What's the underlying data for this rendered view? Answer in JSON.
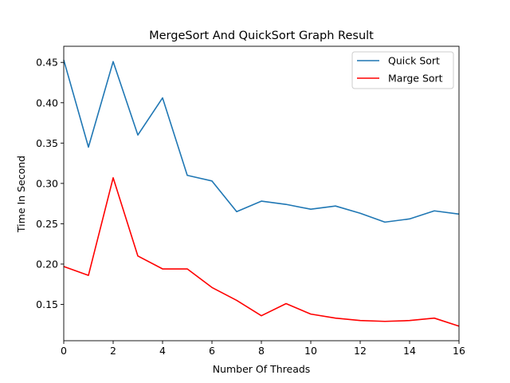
{
  "chart_data": {
    "type": "line",
    "title": "MergeSort And QuickSort Graph Result",
    "xlabel": "Number Of Threads",
    "ylabel": "Time In Second",
    "xlim": [
      0,
      16
    ],
    "ylim": [
      0.105,
      0.47
    ],
    "xticks": [
      0,
      2,
      4,
      6,
      8,
      10,
      12,
      14,
      16
    ],
    "yticks": [
      0.15,
      0.2,
      0.25,
      0.3,
      0.35,
      0.4,
      0.45
    ],
    "ytick_labels": [
      "0.15",
      "0.20",
      "0.25",
      "0.30",
      "0.35",
      "0.40",
      "0.45"
    ],
    "grid": false,
    "legend_position": "top-right",
    "x": [
      0,
      1,
      2,
      3,
      4,
      5,
      6,
      7,
      8,
      9,
      10,
      11,
      12,
      13,
      14,
      15,
      16
    ],
    "series": [
      {
        "name": "Quick Sort",
        "color": "#1f77b4",
        "values": [
          0.453,
          0.345,
          0.451,
          0.36,
          0.406,
          0.31,
          0.303,
          0.265,
          0.278,
          0.274,
          0.268,
          0.272,
          0.263,
          0.252,
          0.256,
          0.266,
          0.262
        ]
      },
      {
        "name": "Marge Sort",
        "color": "#ff0000",
        "values": [
          0.197,
          0.186,
          0.307,
          0.21,
          0.194,
          0.194,
          0.171,
          0.155,
          0.136,
          0.151,
          0.138,
          0.133,
          0.13,
          0.129,
          0.13,
          0.133,
          0.123
        ]
      }
    ]
  }
}
